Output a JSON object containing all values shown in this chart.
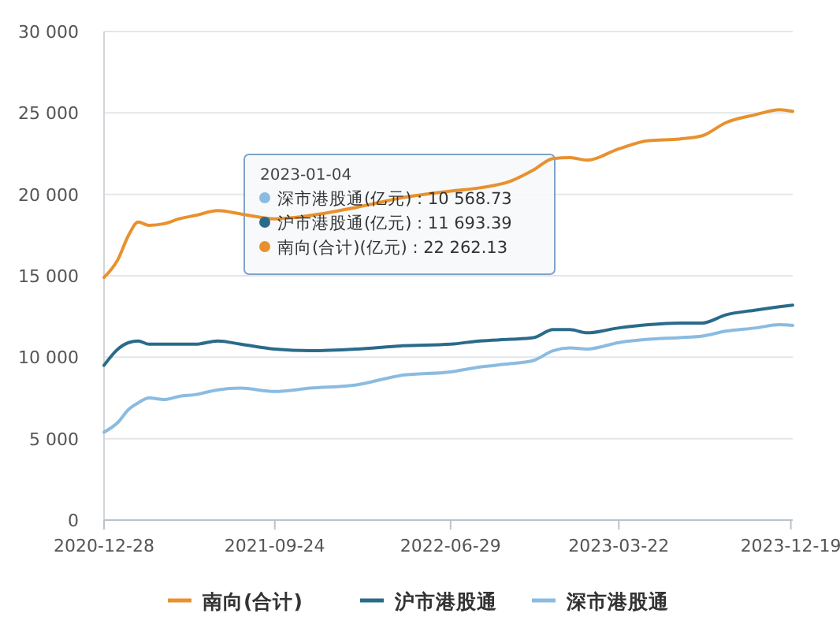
{
  "chart_data": {
    "type": "line",
    "x": [
      "2020-12-28",
      "2021-01-19",
      "2021-02-05",
      "2021-02-20",
      "2021-03-09",
      "2021-04-02",
      "2021-04-26",
      "2021-05-21",
      "2021-06-26",
      "2021-08-01",
      "2021-09-24",
      "2021-11-19",
      "2022-01-31",
      "2022-04-14",
      "2022-06-29",
      "2022-08-14",
      "2022-10-01",
      "2022-11-07",
      "2022-12-08",
      "2023-01-04",
      "2023-01-31",
      "2023-03-22",
      "2023-05-08",
      "2023-06-26",
      "2023-08-01",
      "2023-09-07",
      "2023-10-25",
      "2023-12-01",
      "2023-12-22"
    ],
    "series": [
      {
        "name": "南向(合计)",
        "color": "#e8912e",
        "values": [
          14900,
          16000,
          17500,
          18300,
          18100,
          18200,
          18500,
          18700,
          19000,
          18800,
          18500,
          18700,
          19200,
          19800,
          20200,
          20400,
          20800,
          21500,
          22200,
          22262.13,
          22100,
          22800,
          23300,
          23400,
          23600,
          24400,
          24900,
          25200,
          25100
        ]
      },
      {
        "name": "沪市港股通",
        "color": "#2a6b8a",
        "values": [
          9500,
          10500,
          10900,
          11000,
          10800,
          10800,
          10800,
          10800,
          11000,
          10800,
          10500,
          10400,
          10500,
          10700,
          10800,
          11000,
          11100,
          11200,
          11700,
          11693.39,
          11500,
          11800,
          12000,
          12100,
          12100,
          12600,
          12900,
          13100,
          13200
        ]
      },
      {
        "name": "深市港股通",
        "color": "#8bbbe0",
        "values": [
          5400,
          6000,
          6800,
          7200,
          7500,
          7400,
          7600,
          7700,
          8000,
          8100,
          7900,
          8100,
          8300,
          8900,
          9100,
          9400,
          9600,
          9800,
          10400,
          10568.73,
          10500,
          10900,
          11100,
          11200,
          11300,
          11600,
          11800,
          12000,
          11950
        ]
      }
    ],
    "xlim": [
      "2020-12-28",
      "2023-12-22"
    ],
    "xticks": [
      {
        "value": "2020-12-28",
        "label": "2020-12-28"
      },
      {
        "value": "2021-09-24",
        "label": "2021-09-24"
      },
      {
        "value": "2022-06-29",
        "label": "2022-06-29"
      },
      {
        "value": "2023-03-22",
        "label": "2023-03-22"
      },
      {
        "value": "2023-12-19",
        "label": "2023-12-19"
      }
    ],
    "ylim": [
      0,
      30000
    ],
    "yticks": [
      0,
      {
        "value": 5000,
        "label": "5 000"
      },
      {
        "value": 10000,
        "label": "10 000"
      },
      {
        "value": 15000,
        "label": "15 000"
      },
      {
        "value": 20000,
        "label": "20 000"
      },
      {
        "value": 25000,
        "label": "25 000"
      },
      {
        "value": 30000,
        "label": "30 000"
      }
    ],
    "grid": "y",
    "legend": "bottom",
    "marker": "none",
    "line_style": "solid",
    "annotations": [
      "2023-01-04",
      "深市港股通(亿元) : 10 568.73",
      "沪市港股通(亿元) : 11 693.39",
      "南向(合计)(亿元) : 22 262.13"
    ]
  }
}
